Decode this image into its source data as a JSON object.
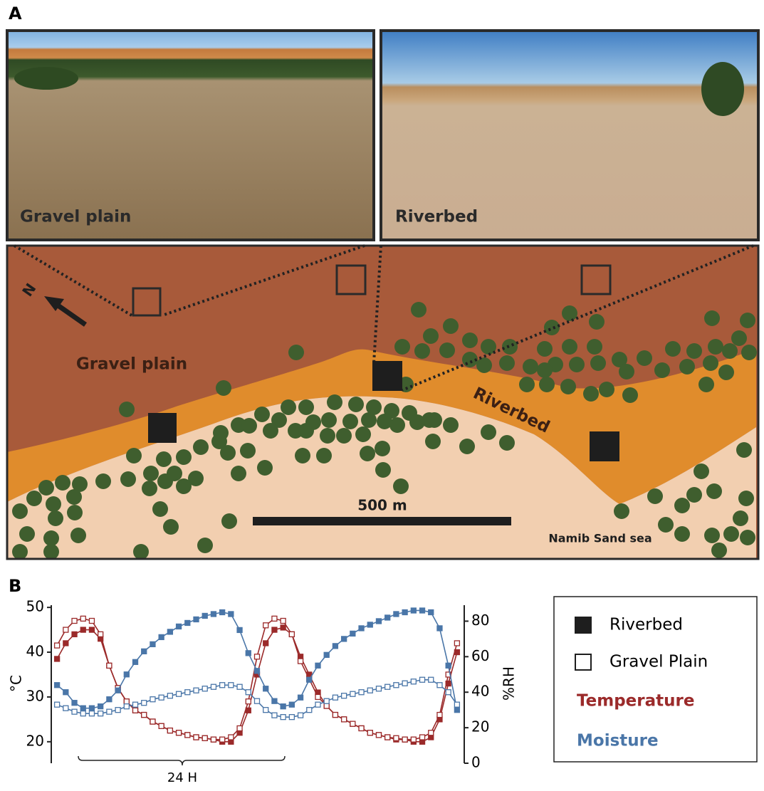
{
  "panel_labels": [
    "A",
    "B"
  ],
  "photos": [
    {
      "label": "Gravel plain"
    },
    {
      "label": "Riverbed"
    }
  ],
  "map": {
    "north": "N",
    "gravel_plain": "Gravel plain",
    "riverbed": "Riverbed",
    "sand_sea": "Namib Sand sea",
    "scale_bar": "500 m"
  },
  "chart_data": {
    "type": "line",
    "y_label": "°C",
    "y2_label": "%RH",
    "annotation": "24 H",
    "x": [
      0,
      1,
      2,
      3,
      4,
      5,
      6,
      7,
      8,
      9,
      10,
      11,
      12,
      13,
      14,
      15,
      16,
      17,
      18,
      19,
      20,
      21,
      22,
      23,
      24,
      25,
      26,
      27,
      28,
      29,
      30,
      31,
      32,
      33,
      34,
      35,
      36,
      37,
      38,
      39,
      40,
      41,
      42,
      43,
      44,
      45,
      46
    ],
    "xlim": [
      -0.5,
      46.5
    ],
    "ylim": [
      15.2,
      50.5
    ],
    "yticks": [
      20,
      30,
      40,
      50
    ],
    "y2lim": [
      0,
      89
    ],
    "y2ticks": [
      0,
      20,
      40,
      60,
      80
    ],
    "legend": {
      "markers": [
        {
          "label": "Riverbed",
          "filled": true
        },
        {
          "label": "Gravel Plain",
          "filled": false
        }
      ],
      "colors": [
        {
          "label": "Temperature",
          "color": "#9b2a2a"
        },
        {
          "label": "Moisture",
          "color": "#4a76a8"
        }
      ]
    },
    "series": [
      {
        "color": "#9b2a2a",
        "filled": true,
        "axis": "y",
        "values": [
          38.5,
          42,
          44,
          45,
          45,
          43,
          37,
          32,
          29,
          27,
          26,
          24.5,
          23.5,
          22.5,
          22,
          21.5,
          21,
          20.8,
          20.5,
          20,
          20,
          22,
          27,
          35,
          42,
          45,
          45.5,
          44,
          39,
          35,
          31,
          28,
          26,
          25,
          24,
          23,
          22,
          21.5,
          21,
          20.5,
          20.5,
          20,
          20,
          21,
          25,
          33,
          40
        ]
      },
      {
        "color": "#9b2a2a",
        "filled": false,
        "axis": "y",
        "values": [
          41.5,
          45,
          47,
          47.5,
          47,
          44,
          37,
          32,
          29,
          27,
          26,
          24.5,
          23.5,
          22.5,
          22,
          21.5,
          21,
          20.8,
          20.5,
          20.5,
          21,
          23,
          29,
          39,
          46,
          47.5,
          47,
          44,
          38,
          34,
          30,
          28,
          26,
          25,
          24,
          23,
          22,
          21.5,
          21,
          20.8,
          20.5,
          20.5,
          21,
          22,
          26,
          35,
          42
        ]
      },
      {
        "color": "#4a76a8",
        "filled": true,
        "axis": "y2",
        "values": [
          44,
          40,
          34,
          31,
          31,
          32,
          36,
          41,
          50,
          57,
          63,
          67,
          71,
          74,
          77,
          79,
          81,
          83,
          84,
          85,
          84,
          75,
          62,
          52,
          42,
          35,
          32,
          33,
          37,
          47,
          55,
          61,
          66,
          70,
          73,
          76,
          78,
          80,
          82,
          84,
          85,
          86,
          86,
          85,
          76,
          55,
          30
        ]
      },
      {
        "color": "#4a76a8",
        "filled": false,
        "axis": "y2",
        "values": [
          33,
          31,
          29,
          28,
          28,
          28,
          29,
          30,
          32,
          33,
          34,
          36,
          37,
          38,
          39,
          40,
          41,
          42,
          43,
          44,
          44,
          43,
          40,
          35,
          30,
          27,
          26,
          26,
          27,
          30,
          33,
          35,
          37,
          38,
          39,
          40,
          41,
          42,
          43,
          44,
          45,
          46,
          47,
          47,
          44,
          40,
          33
        ]
      }
    ]
  }
}
